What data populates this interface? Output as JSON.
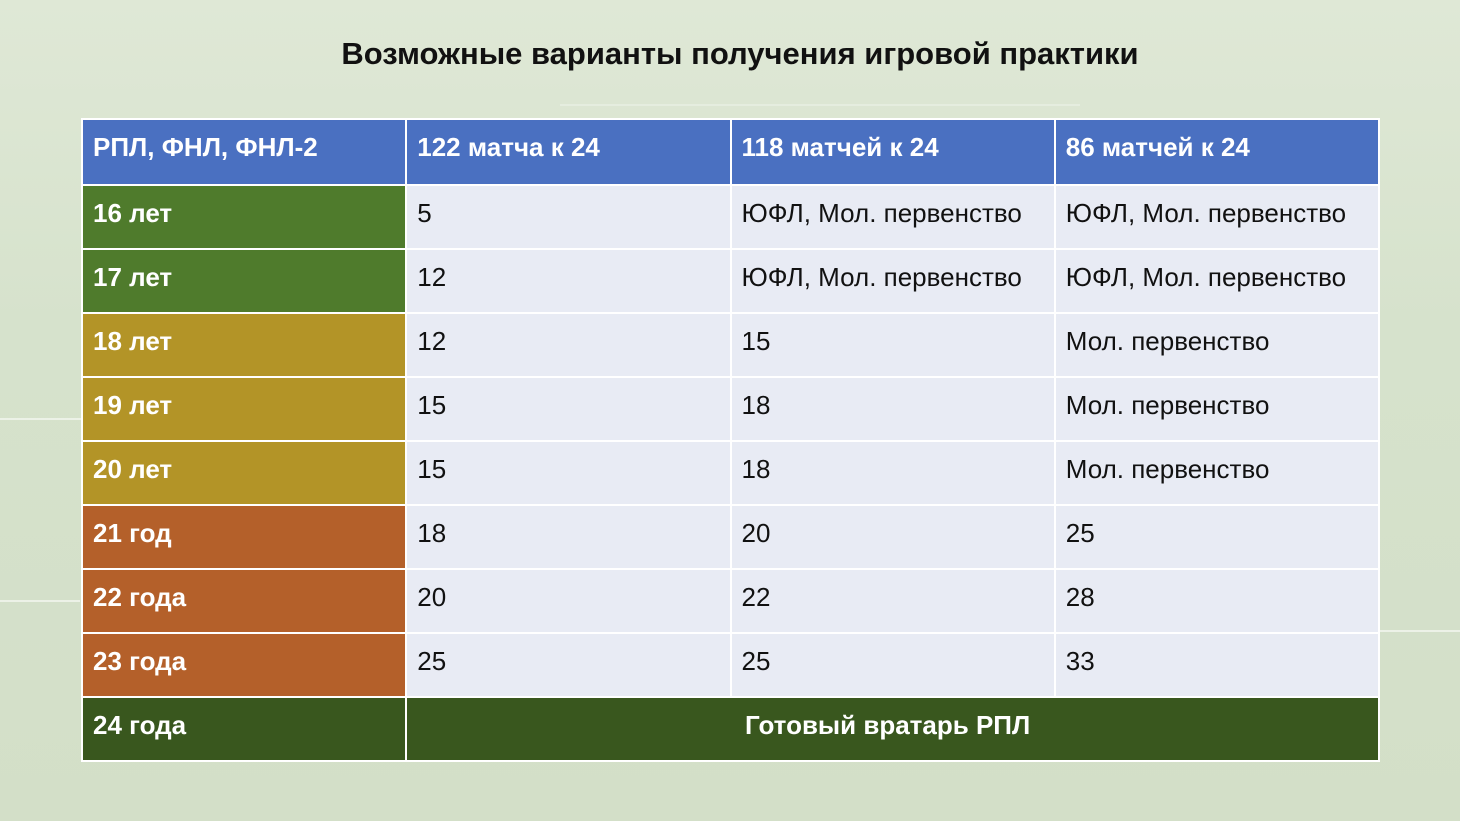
{
  "title": "Возможные варианты получения игровой практики",
  "table": {
    "headers": [
      "РПЛ, ФНЛ, ФНЛ-2",
      "122 матча к 24",
      "118 матчей к 24",
      "86 матчей к 24"
    ],
    "rows": [
      {
        "age": "16 лет",
        "c1": "5",
        "c2": "ЮФЛ, Мол. первенство",
        "c3": "ЮФЛ, Мол. первенство"
      },
      {
        "age": "17 лет",
        "c1": "12",
        "c2": "ЮФЛ, Мол. первенство",
        "c3": "ЮФЛ, Мол. первенство"
      },
      {
        "age": "18 лет",
        "c1": "12",
        "c2": "15",
        "c3": "Мол. первенство"
      },
      {
        "age": "19 лет",
        "c1": "15",
        "c2": "18",
        "c3": "Мол. первенство"
      },
      {
        "age": "20 лет",
        "c1": "15",
        "c2": "18",
        "c3": "Мол. первенство"
      },
      {
        "age": "21 год",
        "c1": "18",
        "c2": "20",
        "c3": "25"
      },
      {
        "age": "22 года",
        "c1": "20",
        "c2": "22",
        "c3": "28"
      },
      {
        "age": "23 года",
        "c1": "25",
        "c2": "25",
        "c3": "33"
      }
    ],
    "final_row": {
      "age": "24 года",
      "text": "Готовый вратарь РПЛ"
    }
  },
  "colors": {
    "header": "#4a70c1",
    "green": "#4f7b2c",
    "yellow": "#b39427",
    "orange": "#b4602a",
    "dark_green": "#39571e",
    "cell": "#e8ebf4"
  }
}
